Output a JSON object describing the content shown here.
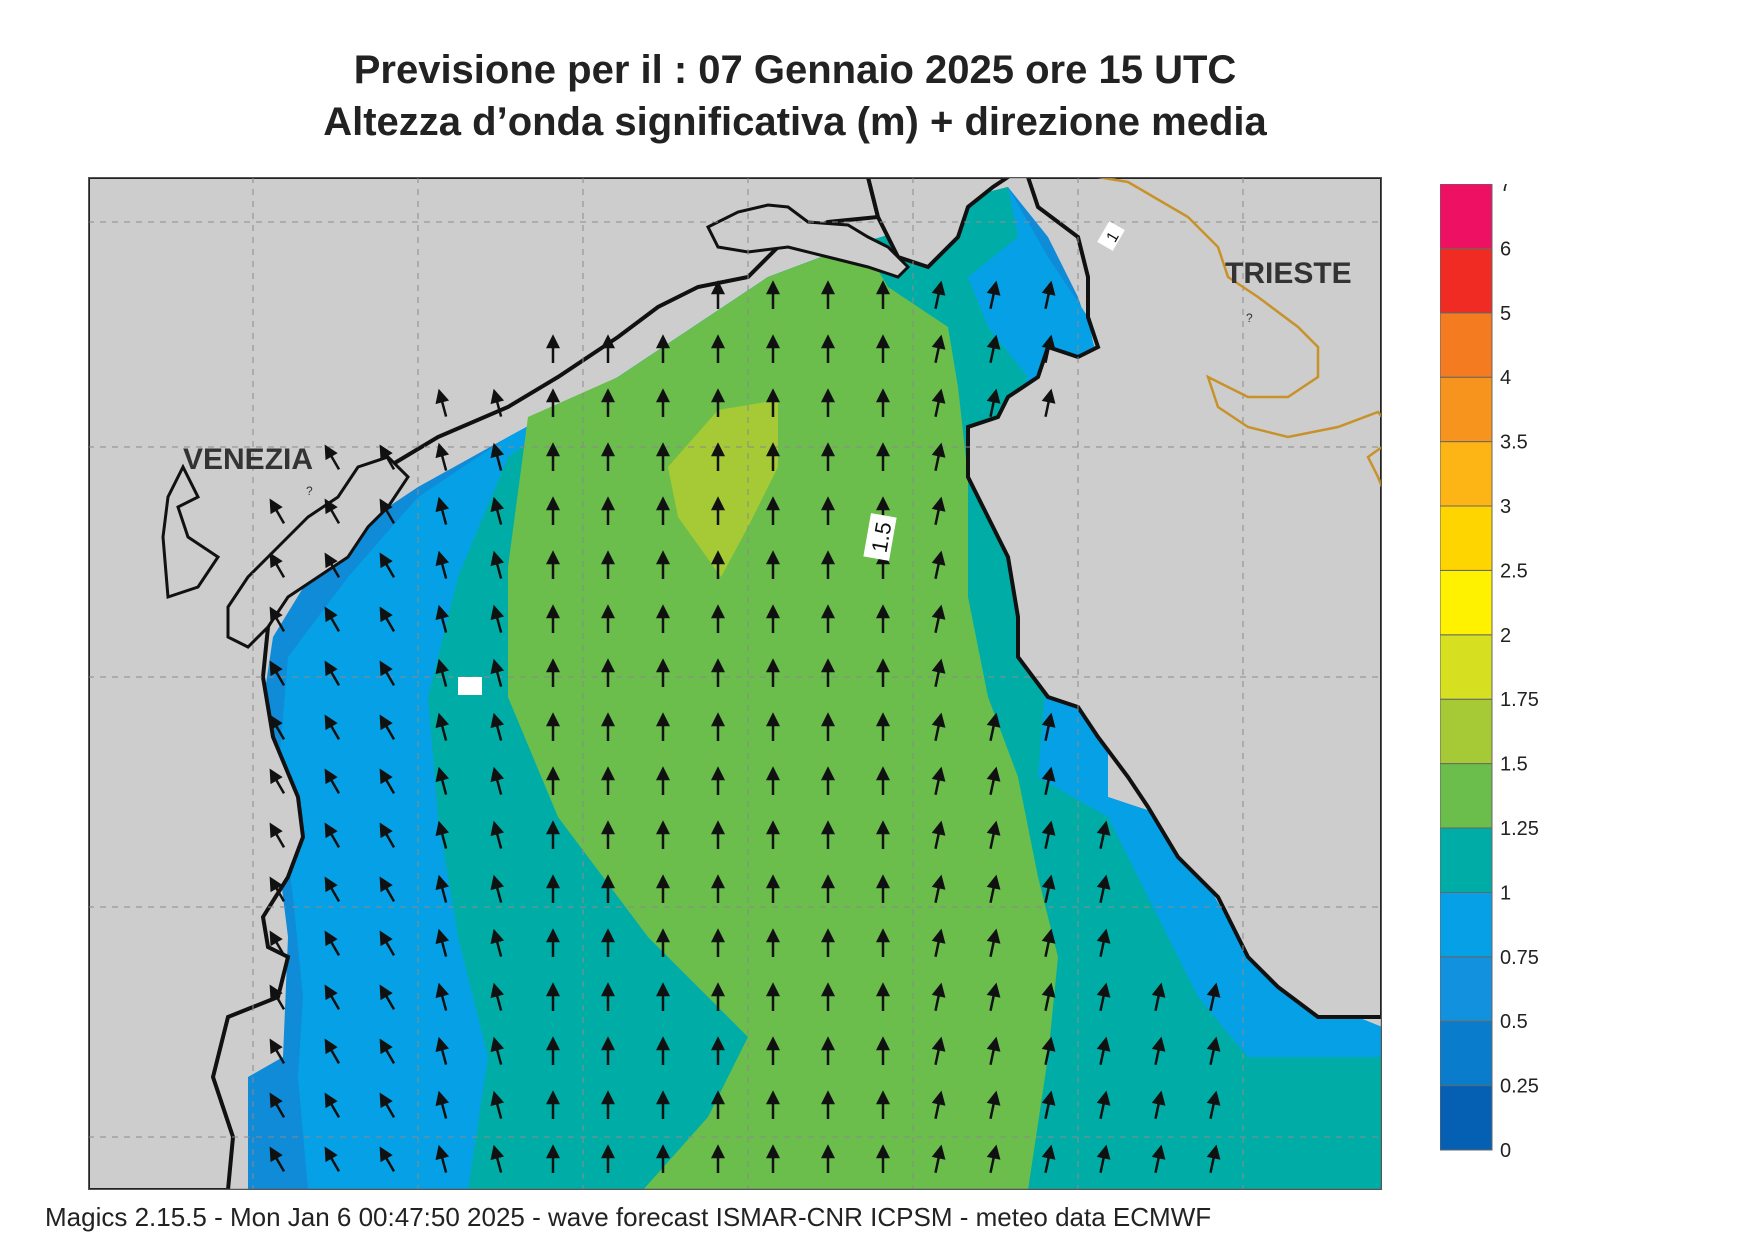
{
  "title_line1": "Previsione per il  :  07  Gennaio  2025   ore 15 UTC",
  "title_line2": "Altezza d’onda significativa (m) + direzione media",
  "footer": "Magics 2.15.5 - Mon Jan  6 00:47:50 2025 - wave forecast  ISMAR-CNR  ICPSM - meteo data   ECMWF",
  "map_labels": {
    "venezia": "VENEZIA",
    "trieste": "TRIESTE",
    "contour_15": "1.5",
    "contour_1": "1"
  },
  "legend": {
    "levels": [
      "0",
      "0.25",
      "0.5",
      "0.75",
      "1",
      "1.25",
      "1.5",
      "1.75",
      "2",
      "2.5",
      "3",
      "3.5",
      "4",
      "5",
      "6",
      "7"
    ],
    "colors": [
      "#0560b4",
      "#0a7ccc",
      "#1291de",
      "#06a0e6",
      "#00ada6",
      "#6bbe4c",
      "#a6ca35",
      "#d6df20",
      "#fff200",
      "#ffd500",
      "#fdb515",
      "#f7941d",
      "#f47b20",
      "#ef2b24",
      "#ee1163"
    ]
  },
  "colors": {
    "land": "#cdcdcd",
    "sea_lt_075": "#0f8bd8",
    "sea_075_1": "#06a0e6",
    "sea_1_125": "#00ada6",
    "sea_125_15": "#6bbe4c",
    "sea_15_175": "#a6ca35",
    "border": "#c8922a",
    "coast": "#111111"
  }
}
